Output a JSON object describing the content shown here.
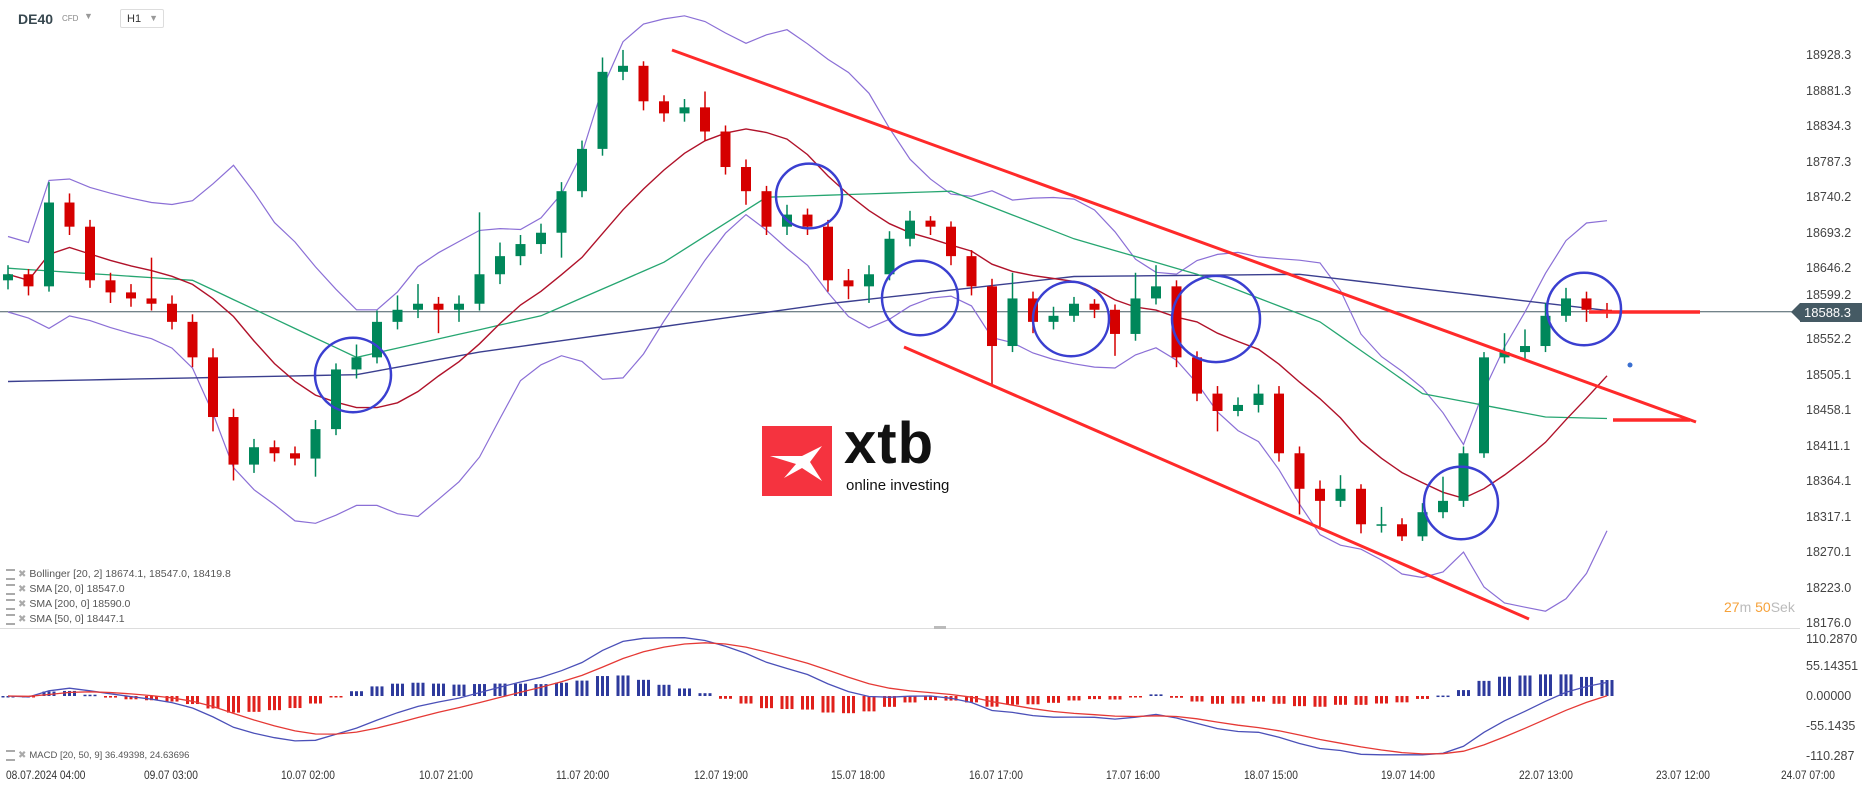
{
  "header": {
    "symbol": "DE40",
    "symbol_type": "CFD",
    "timeframe": "H1"
  },
  "current_price": "18588.3",
  "countdown": {
    "minutes": "27",
    "minutes_unit": "m",
    "seconds": "50",
    "seconds_unit": "Sek"
  },
  "logo": {
    "word": "xtb",
    "tagline": "online investing"
  },
  "legend": [
    {
      "label": "Bollinger  [20, 2] 18674.1,  18547.0,  18419.8"
    },
    {
      "label": "SMA [20, 0] 18547.0"
    },
    {
      "label": "SMA [200, 0] 18590.0"
    },
    {
      "label": "SMA [50, 0] 18447.1"
    }
  ],
  "macd_legend": "MACD [20, 50, 9] 36.49398,  24.63696",
  "colors": {
    "bull": "#00875a",
    "bear": "#d50000",
    "sma20": "#b0122a",
    "sma50": "#26a671",
    "sma200": "#3b3f8f",
    "bollinger": "#8b6fd6",
    "trendline": "#ff2a2a",
    "circle": "#3a3fd0",
    "macd": "#4b50b8",
    "signal": "#e53935",
    "hist_pos": "#2d3a9c",
    "hist_neg": "#e0201b"
  },
  "chart_data": {
    "type": "candlestick",
    "instrument": "DE40",
    "interval": "H1",
    "price_axis": {
      "ticks": [
        "18928.3",
        "18881.3",
        "18834.3",
        "18787.3",
        "18740.2",
        "18693.2",
        "18646.2",
        "18599.2",
        "18552.2",
        "18505.1",
        "18458.1",
        "18411.1",
        "18364.1",
        "18317.1",
        "18270.1",
        "18223.0",
        "18176.0"
      ],
      "range": [
        18176.0,
        18960
      ]
    },
    "macd_axis": {
      "ticks": [
        "110.2870",
        "55.14351",
        "0.00000",
        "-55.1435",
        "-110.287"
      ],
      "range": [
        -110.287,
        110.287
      ]
    },
    "time_axis": [
      "08.07.2024  04:00",
      "09.07  03:00",
      "10.07  02:00",
      "10.07  21:00",
      "11.07  20:00",
      "12.07  19:00",
      "15.07  18:00",
      "16.07  17:00",
      "17.07  16:00",
      "18.07  15:00",
      "19.07  14:00",
      "22.07  13:00",
      "23.07  12:00",
      "24.07  07:00"
    ],
    "candles_ohlc": [
      [
        18630,
        18650,
        18618,
        18638
      ],
      [
        18638,
        18645,
        18610,
        18622
      ],
      [
        18622,
        18760,
        18615,
        18733
      ],
      [
        18733,
        18745,
        18690,
        18701
      ],
      [
        18701,
        18710,
        18620,
        18630
      ],
      [
        18630,
        18640,
        18600,
        18614
      ],
      [
        18614,
        18625,
        18595,
        18606
      ],
      [
        18606,
        18660,
        18590,
        18599
      ],
      [
        18599,
        18610,
        18565,
        18575
      ],
      [
        18575,
        18585,
        18515,
        18528
      ],
      [
        18528,
        18540,
        18430,
        18449
      ],
      [
        18449,
        18460,
        18365,
        18386
      ],
      [
        18386,
        18420,
        18375,
        18409
      ],
      [
        18409,
        18418,
        18390,
        18401
      ],
      [
        18401,
        18410,
        18385,
        18394
      ],
      [
        18394,
        18445,
        18370,
        18433
      ],
      [
        18433,
        18520,
        18425,
        18512
      ],
      [
        18512,
        18545,
        18500,
        18528
      ],
      [
        18528,
        18590,
        18520,
        18575
      ],
      [
        18575,
        18610,
        18565,
        18591
      ],
      [
        18591,
        18625,
        18580,
        18599
      ],
      [
        18599,
        18608,
        18560,
        18591
      ],
      [
        18591,
        18610,
        18575,
        18599
      ],
      [
        18599,
        18720,
        18590,
        18638
      ],
      [
        18638,
        18680,
        18625,
        18662
      ],
      [
        18662,
        18690,
        18650,
        18678
      ],
      [
        18678,
        18705,
        18665,
        18693
      ],
      [
        18693,
        18760,
        18660,
        18748
      ],
      [
        18748,
        18815,
        18740,
        18804
      ],
      [
        18804,
        18925,
        18795,
        18906
      ],
      [
        18906,
        18935,
        18895,
        18914
      ],
      [
        18914,
        18920,
        18855,
        18867
      ],
      [
        18867,
        18875,
        18840,
        18851
      ],
      [
        18851,
        18870,
        18840,
        18859
      ],
      [
        18859,
        18880,
        18815,
        18827
      ],
      [
        18827,
        18835,
        18770,
        18780
      ],
      [
        18780,
        18790,
        18730,
        18748
      ],
      [
        18748,
        18755,
        18690,
        18701
      ],
      [
        18701,
        18730,
        18690,
        18717
      ],
      [
        18717,
        18725,
        18690,
        18701
      ],
      [
        18701,
        18710,
        18615,
        18630
      ],
      [
        18630,
        18645,
        18605,
        18622
      ],
      [
        18622,
        18650,
        18600,
        18638
      ],
      [
        18638,
        18695,
        18630,
        18685
      ],
      [
        18685,
        18722,
        18675,
        18709
      ],
      [
        18709,
        18715,
        18690,
        18701
      ],
      [
        18701,
        18708,
        18650,
        18662
      ],
      [
        18662,
        18670,
        18610,
        18622
      ],
      [
        18622,
        18632,
        18490,
        18543
      ],
      [
        18543,
        18640,
        18535,
        18606
      ],
      [
        18606,
        18615,
        18560,
        18575
      ],
      [
        18575,
        18595,
        18565,
        18583
      ],
      [
        18583,
        18608,
        18575,
        18599
      ],
      [
        18599,
        18605,
        18580,
        18591
      ],
      [
        18591,
        18598,
        18530,
        18559
      ],
      [
        18559,
        18640,
        18550,
        18606
      ],
      [
        18606,
        18650,
        18598,
        18622
      ],
      [
        18622,
        18630,
        18515,
        18528
      ],
      [
        18528,
        18536,
        18470,
        18480
      ],
      [
        18480,
        18490,
        18430,
        18457
      ],
      [
        18457,
        18475,
        18450,
        18465
      ],
      [
        18465,
        18492,
        18455,
        18480
      ],
      [
        18480,
        18490,
        18390,
        18401
      ],
      [
        18401,
        18410,
        18320,
        18354
      ],
      [
        18354,
        18365,
        18300,
        18338
      ],
      [
        18338,
        18372,
        18330,
        18354
      ],
      [
        18354,
        18360,
        18295,
        18307
      ],
      [
        18307,
        18330,
        18296,
        18307
      ],
      [
        18307,
        18315,
        18285,
        18291
      ],
      [
        18291,
        18335,
        18285,
        18323
      ],
      [
        18323,
        18370,
        18315,
        18338
      ],
      [
        18338,
        18410,
        18330,
        18401
      ],
      [
        18401,
        18535,
        18395,
        18528
      ],
      [
        18528,
        18560,
        18520,
        18535
      ],
      [
        18535,
        18565,
        18525,
        18543
      ],
      [
        18543,
        18600,
        18535,
        18583
      ],
      [
        18583,
        18620,
        18575,
        18606
      ],
      [
        18606,
        18615,
        18575,
        18591
      ],
      [
        18591,
        18600,
        18580,
        18588.3
      ]
    ],
    "sma200_points": [
      [
        0,
        18496
      ],
      [
        17,
        18505
      ],
      [
        23,
        18535
      ],
      [
        40,
        18599
      ],
      [
        52,
        18635
      ],
      [
        63,
        18638
      ],
      [
        78,
        18590
      ]
    ],
    "sma50_points": [
      [
        0,
        18646
      ],
      [
        9,
        18630
      ],
      [
        17,
        18528
      ],
      [
        26,
        18583
      ],
      [
        32,
        18654
      ],
      [
        37,
        18740
      ],
      [
        46,
        18748
      ],
      [
        52,
        18685
      ],
      [
        58,
        18638
      ],
      [
        64,
        18575
      ],
      [
        69,
        18480
      ],
      [
        75,
        18449
      ],
      [
        78,
        18447
      ]
    ],
    "indicators": [
      "Bollinger [20, 2]",
      "SMA [20, 0]",
      "SMA [200, 0]",
      "SMA [50, 0]",
      "MACD [20, 50, 9]"
    ],
    "grid": false
  }
}
